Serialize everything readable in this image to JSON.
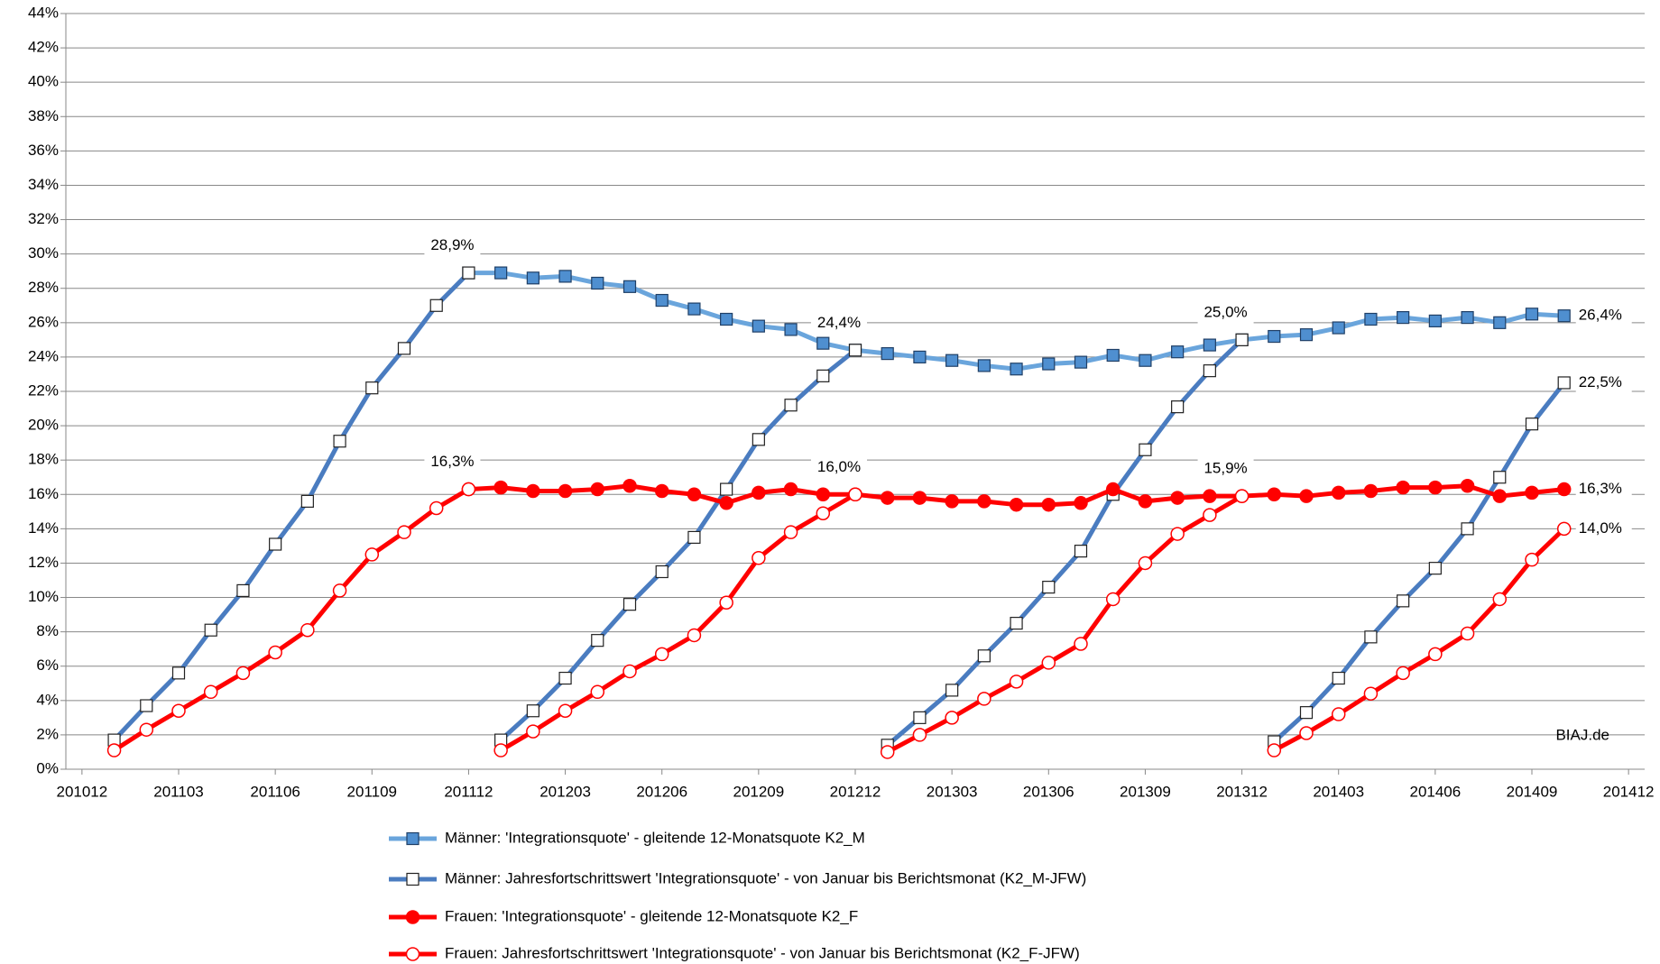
{
  "chart_data": {
    "type": "line",
    "annotation": "BIAJ.de",
    "x": [
      201101,
      201102,
      201103,
      201104,
      201105,
      201106,
      201107,
      201108,
      201109,
      201110,
      201111,
      201112,
      201201,
      201202,
      201203,
      201204,
      201205,
      201206,
      201207,
      201208,
      201209,
      201210,
      201211,
      201212,
      201301,
      201302,
      201303,
      201304,
      201305,
      201306,
      201307,
      201308,
      201309,
      201310,
      201311,
      201312,
      201401,
      201402,
      201403,
      201404,
      201405,
      201406,
      201407,
      201408,
      201409,
      201410
    ],
    "xlim": [
      201012,
      201412
    ],
    "xticks": [
      201012,
      201103,
      201106,
      201109,
      201112,
      201203,
      201206,
      201209,
      201212,
      201303,
      201306,
      201309,
      201312,
      201403,
      201406,
      201409,
      201412
    ],
    "ylim": [
      0,
      44
    ],
    "yticks": [
      {
        "value": 0,
        "label": "0%"
      },
      {
        "value": 2,
        "label": "2%"
      },
      {
        "value": 4,
        "label": "4%"
      },
      {
        "value": 6,
        "label": "6%"
      },
      {
        "value": 8,
        "label": "8%"
      },
      {
        "value": 10,
        "label": "10%"
      },
      {
        "value": 12,
        "label": "12%"
      },
      {
        "value": 14,
        "label": "14%"
      },
      {
        "value": 16,
        "label": "16%"
      },
      {
        "value": 18,
        "label": "18%"
      },
      {
        "value": 20,
        "label": "20%"
      },
      {
        "value": 22,
        "label": "22%"
      },
      {
        "value": 24,
        "label": "24%"
      },
      {
        "value": 26,
        "label": "26%"
      },
      {
        "value": 28,
        "label": "28%"
      },
      {
        "value": 30,
        "label": "30%"
      },
      {
        "value": 32,
        "label": "32%"
      },
      {
        "value": 34,
        "label": "34%"
      },
      {
        "value": 36,
        "label": "36%"
      },
      {
        "value": 38,
        "label": "38%"
      },
      {
        "value": 40,
        "label": "40%"
      },
      {
        "value": 42,
        "label": "42%"
      },
      {
        "value": 44,
        "label": "44%"
      }
    ],
    "grid": true,
    "legend": "bottom",
    "series": [
      {
        "name": "Männer: 'Integrationsquote' - gleitende 12-Monatsquote K2_M",
        "color": "#6aa5dc",
        "marker": "square",
        "marker_fill": "#4f8fd0",
        "marker_edge": "#1f3f66",
        "cumulative_by_year": false,
        "values": [
          null,
          null,
          null,
          null,
          null,
          null,
          null,
          null,
          null,
          null,
          null,
          28.9,
          28.9,
          28.6,
          28.7,
          28.3,
          28.1,
          27.3,
          26.8,
          26.2,
          25.8,
          25.6,
          24.8,
          24.4,
          24.2,
          24.0,
          23.8,
          23.5,
          23.3,
          23.6,
          23.7,
          24.1,
          23.8,
          24.3,
          24.7,
          25.0,
          25.2,
          25.3,
          25.7,
          26.2,
          26.3,
          26.1,
          26.3,
          26.0,
          26.5,
          26.4
        ],
        "value_labels": [
          null,
          null,
          null,
          null,
          null,
          null,
          null,
          null,
          null,
          null,
          null,
          "28,9%",
          null,
          null,
          null,
          null,
          null,
          null,
          null,
          null,
          null,
          null,
          null,
          "24,4%",
          null,
          null,
          null,
          null,
          null,
          null,
          null,
          null,
          null,
          null,
          null,
          "25,0%",
          null,
          null,
          null,
          null,
          null,
          null,
          null,
          null,
          null,
          "26,4%"
        ]
      },
      {
        "name": "Männer: Jahresfortschrittswert 'Integrationsquote' - von Januar bis Berichtsmonat (K2_M-JFW)",
        "color": "#4a7cc0",
        "marker": "square",
        "marker_fill": "#ffffff",
        "marker_edge": "#222222",
        "cumulative_by_year": true,
        "values": [
          1.7,
          3.7,
          5.6,
          8.1,
          10.4,
          13.1,
          15.6,
          19.1,
          22.2,
          24.5,
          27.0,
          28.9,
          1.7,
          3.4,
          5.3,
          7.5,
          9.6,
          11.5,
          13.5,
          16.3,
          19.2,
          21.2,
          22.9,
          24.4,
          1.4,
          3.0,
          4.6,
          6.6,
          8.5,
          10.6,
          12.7,
          16.0,
          18.6,
          21.1,
          23.2,
          25.0,
          1.6,
          3.3,
          5.3,
          7.7,
          9.8,
          11.7,
          14.0,
          17.0,
          20.1,
          22.5
        ],
        "value_labels": [
          null,
          null,
          null,
          null,
          null,
          null,
          null,
          null,
          null,
          null,
          null,
          null,
          null,
          null,
          null,
          null,
          null,
          null,
          null,
          null,
          null,
          null,
          null,
          null,
          null,
          null,
          null,
          null,
          null,
          null,
          null,
          null,
          null,
          null,
          null,
          null,
          null,
          null,
          null,
          null,
          null,
          null,
          null,
          null,
          null,
          "22,5%"
        ]
      },
      {
        "name": "Frauen: 'Integrationsquote' - gleitende 12-Monatsquote K2_F",
        "color": "#ff0000",
        "marker": "circle",
        "marker_fill": "#ff0000",
        "marker_edge": "#ff0000",
        "cumulative_by_year": false,
        "values": [
          null,
          null,
          null,
          null,
          null,
          null,
          null,
          null,
          null,
          null,
          null,
          16.3,
          16.4,
          16.2,
          16.2,
          16.3,
          16.5,
          16.2,
          16.0,
          15.5,
          16.1,
          16.3,
          16.0,
          16.0,
          15.8,
          15.8,
          15.6,
          15.6,
          15.4,
          15.4,
          15.5,
          16.3,
          15.6,
          15.8,
          15.9,
          15.9,
          16.0,
          15.9,
          16.1,
          16.2,
          16.4,
          16.4,
          16.5,
          15.9,
          16.1,
          16.3
        ],
        "value_labels": [
          null,
          null,
          null,
          null,
          null,
          null,
          null,
          null,
          null,
          null,
          null,
          "16,3%",
          null,
          null,
          null,
          null,
          null,
          null,
          null,
          null,
          null,
          null,
          null,
          "16,0%",
          null,
          null,
          null,
          null,
          null,
          null,
          null,
          null,
          null,
          null,
          null,
          "15,9%",
          null,
          null,
          null,
          null,
          null,
          null,
          null,
          null,
          null,
          "16,3%"
        ]
      },
      {
        "name": "Frauen: Jahresfortschrittswert 'Integrationsquote' - von Januar bis Berichtsmonat (K2_F-JFW)",
        "color": "#ff0000",
        "marker": "circle",
        "marker_fill": "#ffffff",
        "marker_edge": "#ff0000",
        "cumulative_by_year": true,
        "values": [
          1.1,
          2.3,
          3.4,
          4.5,
          5.6,
          6.8,
          8.1,
          10.4,
          12.5,
          13.8,
          15.2,
          16.3,
          1.1,
          2.2,
          3.4,
          4.5,
          5.7,
          6.7,
          7.8,
          9.7,
          12.3,
          13.8,
          14.9,
          16.0,
          1.0,
          2.0,
          3.0,
          4.1,
          5.1,
          6.2,
          7.3,
          9.9,
          12.0,
          13.7,
          14.8,
          15.9,
          1.1,
          2.1,
          3.2,
          4.4,
          5.6,
          6.7,
          7.9,
          9.9,
          12.2,
          14.0
        ],
        "value_labels": [
          null,
          null,
          null,
          null,
          null,
          null,
          null,
          null,
          null,
          null,
          null,
          null,
          null,
          null,
          null,
          null,
          null,
          null,
          null,
          null,
          null,
          null,
          null,
          null,
          null,
          null,
          null,
          null,
          null,
          null,
          null,
          null,
          null,
          null,
          null,
          null,
          null,
          null,
          null,
          null,
          null,
          null,
          null,
          null,
          null,
          "14,0%"
        ]
      }
    ]
  }
}
